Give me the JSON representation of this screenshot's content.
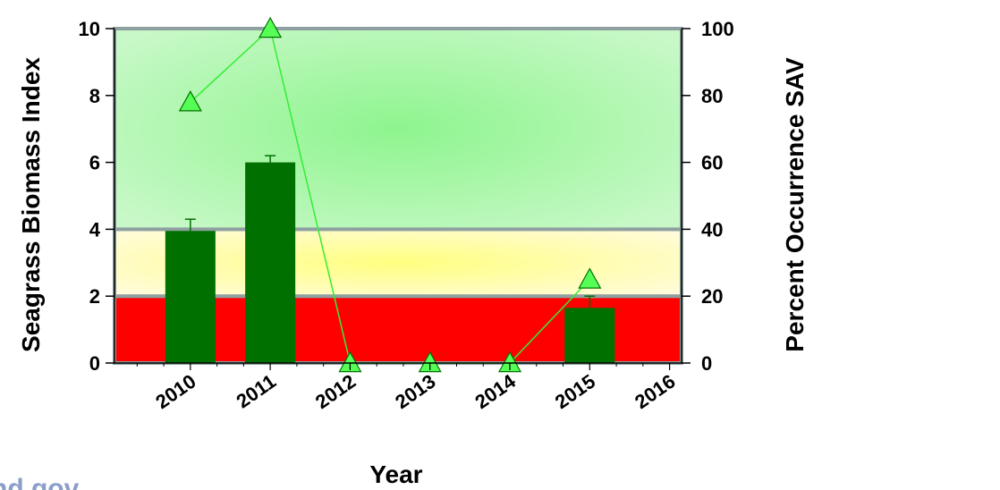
{
  "watermark": "nd.gov",
  "chart_data": {
    "type": "bar",
    "title": "",
    "xlabel": "Year",
    "ylabel": "Seagrass Biomass Index",
    "y2label": "Percent Occurrence SAV",
    "categories": [
      "2010",
      "2011",
      "2012",
      "2013",
      "2014",
      "2015",
      "2016"
    ],
    "ylim": [
      0,
      10
    ],
    "y2lim": [
      0,
      100
    ],
    "yticks": [
      "0",
      "2",
      "4",
      "6",
      "8",
      "10"
    ],
    "y2ticks": [
      "0",
      "20",
      "40",
      "60",
      "80",
      "100"
    ],
    "bands": [
      {
        "from": 0,
        "to": 2,
        "color": "#ff0000"
      },
      {
        "from": 2,
        "to": 4,
        "color": "#ffffc0"
      },
      {
        "from": 4,
        "to": 10,
        "color": "#a8f5a8"
      }
    ],
    "series": [
      {
        "type": "bar",
        "axis": "left",
        "color": "#007000",
        "values": [
          3.95,
          6.0,
          null,
          null,
          null,
          1.65,
          null
        ],
        "error_upper": [
          4.3,
          6.2,
          null,
          null,
          null,
          2.0,
          null
        ]
      },
      {
        "type": "line",
        "axis": "right",
        "color": "#33ee33",
        "marker": "triangle",
        "values": [
          78,
          100,
          0,
          0,
          0,
          25,
          null
        ]
      }
    ],
    "grid": false,
    "legend": "none"
  }
}
